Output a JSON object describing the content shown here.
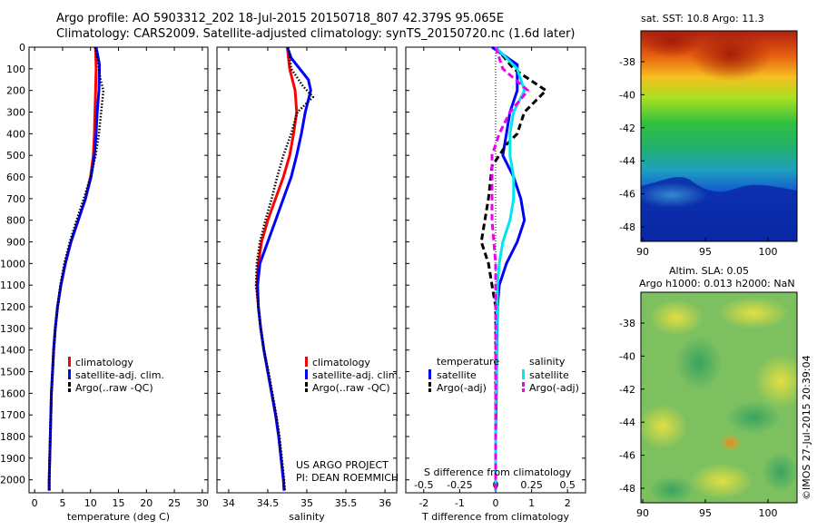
{
  "title": {
    "line1": "Argo profile: AO 5903312_202 18-Jul-2015 20150718_807 42.379S 95.065E",
    "line2": "Climatology: CARS2009. Satellite-adjusted climatology: synTS_20150720.nc (1.6d later)"
  },
  "colors": {
    "climatology": "#ff0000",
    "satellite": "#0000ff",
    "argo": "#000000",
    "sal_satellite": "#00e5ee",
    "sal_argo": "#ee00ee"
  },
  "depth_ticks": [
    "0",
    "100",
    "200",
    "300",
    "400",
    "500",
    "600",
    "700",
    "800",
    "900",
    "1000",
    "1100",
    "1200",
    "1300",
    "1400",
    "1500",
    "1600",
    "1700",
    "1800",
    "1900",
    "2000"
  ],
  "legend": {
    "climatology": "climatology",
    "satellite_adj": "satellite-adj. clim.",
    "argo": "Argo(..raw -QC)"
  },
  "diff_legend": {
    "temperature": "temperature",
    "salinity": "salinity",
    "satellite": "satellite",
    "argo_adj": "Argo(-adj)"
  },
  "credits": {
    "line1": "US ARGO PROJECT",
    "line2": "PI: DEAN ROEMMICH"
  },
  "maps": {
    "sst_title": "sat. SST: 10.8 Argo: 11.3",
    "sla_title1": "Altim. SLA: 0.05",
    "sla_title2": "Argo h1000: 0.013 h2000: NaN",
    "y_ticks": [
      "-38",
      "-40",
      "-42",
      "-44",
      "-46",
      "-48"
    ],
    "x_ticks": [
      "90",
      "95",
      "100"
    ],
    "watermark": "©IMOS 27-Jul-2015 20:39:04"
  },
  "chart_data": [
    {
      "type": "line",
      "xlabel": "temperature (deg C)",
      "xlim": [
        -1,
        31
      ],
      "ylim": [
        2060,
        0
      ],
      "x_ticks": [
        "0",
        "5",
        "10",
        "15",
        "20",
        "25",
        "30"
      ],
      "series": [
        {
          "name": "climatology",
          "points": [
            [
              10.9,
              0
            ],
            [
              11.0,
              100
            ],
            [
              10.9,
              200
            ],
            [
              10.8,
              300
            ],
            [
              10.7,
              400
            ],
            [
              10.5,
              500
            ],
            [
              10.0,
              600
            ],
            [
              9.1,
              700
            ],
            [
              7.8,
              800
            ],
            [
              6.5,
              900
            ],
            [
              5.5,
              1000
            ],
            [
              4.7,
              1100
            ],
            [
              4.1,
              1200
            ],
            [
              3.7,
              1300
            ],
            [
              3.4,
              1400
            ],
            [
              3.2,
              1500
            ],
            [
              3.0,
              1600
            ],
            [
              2.9,
              1700
            ],
            [
              2.8,
              1800
            ],
            [
              2.7,
              1900
            ],
            [
              2.6,
              2000
            ],
            [
              2.6,
              2050
            ]
          ]
        },
        {
          "name": "satellite-adj. clim.",
          "points": [
            [
              11.0,
              0
            ],
            [
              11.6,
              80
            ],
            [
              11.5,
              200
            ],
            [
              11.2,
              300
            ],
            [
              11.0,
              400
            ],
            [
              10.7,
              500
            ],
            [
              10.1,
              600
            ],
            [
              9.1,
              700
            ],
            [
              7.8,
              800
            ],
            [
              6.5,
              900
            ],
            [
              5.5,
              1000
            ],
            [
              4.7,
              1100
            ],
            [
              4.1,
              1200
            ],
            [
              3.7,
              1300
            ],
            [
              3.4,
              1400
            ],
            [
              3.2,
              1500
            ],
            [
              3.0,
              1600
            ],
            [
              2.9,
              1700
            ],
            [
              2.8,
              1800
            ],
            [
              2.7,
              1900
            ],
            [
              2.6,
              2000
            ],
            [
              2.6,
              2050
            ]
          ]
        },
        {
          "name": "Argo(..raw -QC)",
          "points": [
            [
              10.8,
              0
            ],
            [
              11.2,
              50
            ],
            [
              11.8,
              150
            ],
            [
              12.3,
              200
            ],
            [
              11.9,
              300
            ],
            [
              11.5,
              400
            ],
            [
              10.9,
              500
            ],
            [
              10.0,
              600
            ],
            [
              8.8,
              700
            ],
            [
              7.5,
              800
            ],
            [
              6.3,
              900
            ],
            [
              5.3,
              1000
            ],
            [
              4.6,
              1100
            ],
            [
              4.1,
              1200
            ],
            [
              3.7,
              1300
            ],
            [
              3.4,
              1400
            ],
            [
              3.2,
              1500
            ],
            [
              3.0,
              1600
            ],
            [
              2.9,
              1700
            ],
            [
              2.8,
              1800
            ],
            [
              2.7,
              1900
            ],
            [
              2.6,
              2000
            ],
            [
              2.6,
              2050
            ]
          ]
        }
      ]
    },
    {
      "type": "line",
      "xlabel": "salinity",
      "xlim": [
        33.85,
        36.15
      ],
      "ylim": [
        2060,
        0
      ],
      "x_ticks": [
        "34",
        "34.5",
        "35",
        "35.5",
        "36"
      ],
      "series": [
        {
          "name": "climatology",
          "points": [
            [
              34.75,
              0
            ],
            [
              34.78,
              100
            ],
            [
              34.85,
              200
            ],
            [
              34.87,
              300
            ],
            [
              34.83,
              400
            ],
            [
              34.78,
              500
            ],
            [
              34.7,
              600
            ],
            [
              34.6,
              700
            ],
            [
              34.5,
              800
            ],
            [
              34.42,
              900
            ],
            [
              34.38,
              1000
            ],
            [
              34.36,
              1100
            ],
            [
              34.38,
              1200
            ],
            [
              34.41,
              1300
            ],
            [
              34.45,
              1400
            ],
            [
              34.5,
              1500
            ],
            [
              34.55,
              1600
            ],
            [
              34.6,
              1700
            ],
            [
              34.64,
              1800
            ],
            [
              34.67,
              1900
            ],
            [
              34.7,
              2000
            ],
            [
              34.71,
              2050
            ]
          ]
        },
        {
          "name": "satellite-adj. clim.",
          "points": [
            [
              34.75,
              0
            ],
            [
              34.8,
              50
            ],
            [
              35.02,
              150
            ],
            [
              35.05,
              200
            ],
            [
              34.98,
              300
            ],
            [
              34.93,
              400
            ],
            [
              34.87,
              500
            ],
            [
              34.8,
              600
            ],
            [
              34.7,
              700
            ],
            [
              34.6,
              800
            ],
            [
              34.5,
              900
            ],
            [
              34.4,
              1000
            ],
            [
              34.37,
              1100
            ],
            [
              34.38,
              1200
            ],
            [
              34.41,
              1300
            ],
            [
              34.45,
              1400
            ],
            [
              34.5,
              1500
            ],
            [
              34.55,
              1600
            ],
            [
              34.6,
              1700
            ],
            [
              34.64,
              1800
            ],
            [
              34.67,
              1900
            ],
            [
              34.7,
              2000
            ],
            [
              34.71,
              2050
            ]
          ]
        },
        {
          "name": "Argo(..raw -QC)",
          "points": [
            [
              34.76,
              0
            ],
            [
              34.8,
              100
            ],
            [
              34.95,
              180
            ],
            [
              35.08,
              230
            ],
            [
              34.88,
              300
            ],
            [
              34.8,
              400
            ],
            [
              34.7,
              500
            ],
            [
              34.62,
              600
            ],
            [
              34.55,
              700
            ],
            [
              34.47,
              800
            ],
            [
              34.4,
              900
            ],
            [
              34.36,
              1000
            ],
            [
              34.35,
              1100
            ],
            [
              34.38,
              1200
            ],
            [
              34.41,
              1300
            ],
            [
              34.45,
              1400
            ],
            [
              34.51,
              1500
            ],
            [
              34.56,
              1600
            ],
            [
              34.61,
              1700
            ],
            [
              34.65,
              1800
            ],
            [
              34.68,
              1900
            ],
            [
              34.71,
              2000
            ],
            [
              34.72,
              2050
            ]
          ]
        }
      ]
    },
    {
      "type": "line",
      "xlabel": "T difference from climatology",
      "xlabel_top": "S difference from climatology",
      "xlim": [
        -2.5,
        2.5
      ],
      "ylim": [
        2060,
        0
      ],
      "x_ticks": [
        "-2",
        "-1",
        "0",
        "1",
        "2"
      ],
      "x_ticks_top": [
        "-0.5",
        "-0.25",
        "0",
        "0.25",
        "0.5"
      ],
      "series": [
        {
          "name": "temperature satellite",
          "points": [
            [
              -0.1,
              0
            ],
            [
              0.6,
              80
            ],
            [
              0.6,
              200
            ],
            [
              0.4,
              300
            ],
            [
              0.3,
              400
            ],
            [
              0.2,
              500
            ],
            [
              0.5,
              600
            ],
            [
              0.7,
              700
            ],
            [
              0.8,
              800
            ],
            [
              0.6,
              900
            ],
            [
              0.3,
              1000
            ],
            [
              0.1,
              1100
            ],
            [
              0.05,
              1200
            ],
            [
              0.03,
              1400
            ],
            [
              0.02,
              1600
            ],
            [
              0.0,
              1800
            ],
            [
              0.0,
              2050
            ]
          ]
        },
        {
          "name": "temperature Argo(-adj)",
          "points": [
            [
              0.0,
              0
            ],
            [
              0.5,
              100
            ],
            [
              1.4,
              200
            ],
            [
              0.8,
              300
            ],
            [
              0.6,
              400
            ],
            [
              0.3,
              450
            ],
            [
              -0.1,
              550
            ],
            [
              -0.2,
              700
            ],
            [
              -0.3,
              800
            ],
            [
              -0.4,
              900
            ],
            [
              -0.2,
              1000
            ],
            [
              -0.1,
              1100
            ],
            [
              0.0,
              1200
            ],
            [
              0.0,
              1400
            ],
            [
              0.0,
              1600
            ],
            [
              0.0,
              1800
            ],
            [
              0.0,
              2050
            ]
          ]
        },
        {
          "name": "salinity satellite",
          "points": [
            [
              0.0,
              0
            ],
            [
              0.6,
              100
            ],
            [
              0.8,
              200
            ],
            [
              0.5,
              300
            ],
            [
              0.4,
              400
            ],
            [
              0.4,
              500
            ],
            [
              0.5,
              600
            ],
            [
              0.5,
              700
            ],
            [
              0.4,
              800
            ],
            [
              0.2,
              900
            ],
            [
              0.1,
              1000
            ],
            [
              0.05,
              1100
            ],
            [
              0.03,
              1300
            ],
            [
              0.02,
              1500
            ],
            [
              0.0,
              1700
            ],
            [
              0.0,
              1900
            ],
            [
              0.0,
              2050
            ]
          ]
        },
        {
          "name": "salinity Argo(-adj)",
          "points": [
            [
              0.0,
              0
            ],
            [
              0.2,
              100
            ],
            [
              0.9,
              200
            ],
            [
              0.4,
              300
            ],
            [
              0.1,
              400
            ],
            [
              -0.1,
              500
            ],
            [
              -0.1,
              600
            ],
            [
              -0.1,
              700
            ],
            [
              -0.1,
              800
            ],
            [
              -0.05,
              900
            ],
            [
              0.0,
              1000
            ],
            [
              0.0,
              1200
            ],
            [
              0.0,
              1400
            ],
            [
              0.0,
              1600
            ],
            [
              0.0,
              1800
            ],
            [
              0.0,
              2050
            ]
          ]
        }
      ]
    }
  ]
}
